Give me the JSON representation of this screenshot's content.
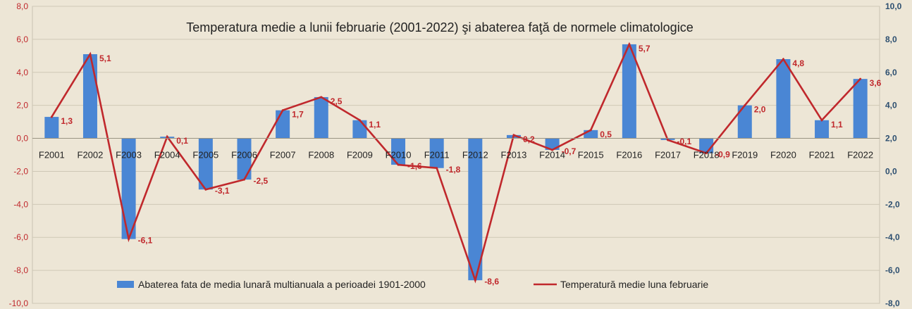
{
  "chart_data": {
    "type": "bar",
    "title": "Temperatura medie a lunii februarie (2001-2022) şi abaterea faţă de normele climatologice",
    "categories": [
      "F2001",
      "F2002",
      "F2003",
      "F2004",
      "F2005",
      "F2006",
      "F2007",
      "F2008",
      "F2009",
      "F2010",
      "F2011",
      "F2012",
      "F2013",
      "F2014",
      "F2015",
      "F2016",
      "F2017",
      "F2018",
      "F2019",
      "F2020",
      "F2021",
      "F2022"
    ],
    "series": [
      {
        "name": "Abaterea  fata de media lunară multianuala a perioadei 1901-2000",
        "type": "bar",
        "axis": "left",
        "color": "#4a86d4",
        "values": [
          1.3,
          5.1,
          -6.1,
          0.1,
          -3.1,
          -2.5,
          1.7,
          2.5,
          1.1,
          -1.6,
          -1.8,
          -8.6,
          0.2,
          -0.7,
          0.5,
          5.7,
          -0.1,
          -0.9,
          2.0,
          4.8,
          1.1,
          3.6
        ]
      },
      {
        "name": "Temperatură medie luna  februarie",
        "type": "line",
        "axis": "right",
        "color": "#c0282c",
        "values": [
          3.3,
          7.1,
          -4.1,
          2.1,
          -1.1,
          -0.5,
          3.7,
          4.5,
          3.1,
          0.4,
          0.2,
          -6.6,
          2.2,
          1.3,
          2.5,
          7.7,
          1.9,
          1.1,
          4.0,
          6.8,
          3.1,
          5.6
        ]
      }
    ],
    "data_labels": [
      "1,3",
      "5,1",
      "-6,1",
      "0,1",
      "-3,1",
      "-2,5",
      "1,7",
      "2,5",
      "1,1",
      "-1,6",
      "-1,8",
      "-8,6",
      "0,2",
      "-0,7",
      "0,5",
      "5,7",
      "-0,1",
      "-0,9",
      "2,0",
      "4,8",
      "1,1",
      "3,6"
    ],
    "ylim": [
      -10,
      8
    ],
    "y_ticks": [
      "8,0",
      "6,0",
      "4,0",
      "2,0",
      "0,0",
      "-2,0",
      "-4,0",
      "-6,0",
      "-8,0",
      "-10,0"
    ],
    "y2lim": [
      -8,
      10
    ],
    "y2_ticks": [
      "10,0",
      "8,0",
      "6,0",
      "4,0",
      "2,0",
      "0,0",
      "-2,0",
      "-4,0",
      "-6,0",
      "-8,0"
    ],
    "grid": true,
    "legend": "bottom"
  }
}
